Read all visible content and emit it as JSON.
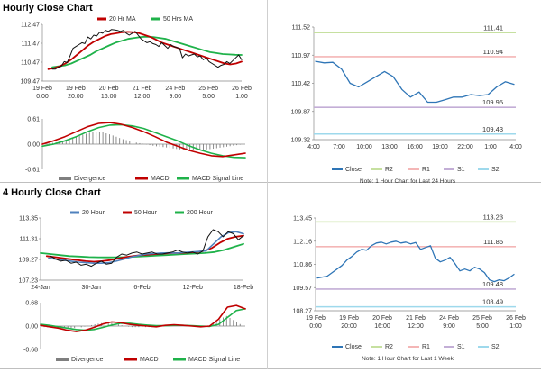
{
  "colors": {
    "close_dark": "#111111",
    "ma20": "#c00000",
    "ma50": "#1fb24a",
    "h200": "#1fb24a",
    "macd": "#c00000",
    "signal": "#1fb24a",
    "divergence": "#7f7f7f",
    "close_blue": "#2e75b6",
    "r2": "#c6e0a0",
    "r1": "#f4b6b6",
    "s1": "#c3aed6",
    "s2": "#9ed9ec",
    "h20": "#4f81bd",
    "h50": "#c00000"
  },
  "sections": {
    "hourly_title": "Hourly Close Chart",
    "four_hourly_title": "4 Hourly Close Chart"
  },
  "chart_data": [
    {
      "id": "hourly_price",
      "type": "line",
      "legend": [
        "20 Hr MA",
        "50 Hrs MA"
      ],
      "y_ticks": [
        "112.47",
        "111.47",
        "110.47",
        "109.47"
      ],
      "ylim": [
        109.47,
        112.47
      ],
      "x_ticks": [
        [
          "19 Feb",
          "0:00"
        ],
        [
          "19 Feb",
          "20:00"
        ],
        [
          "20 Feb",
          "16:00"
        ],
        [
          "21 Feb",
          "12:00"
        ],
        [
          "24 Feb",
          "9:00"
        ],
        [
          "25 Feb",
          "5:00"
        ],
        [
          "26 Feb",
          "1:00"
        ]
      ],
      "series": [
        {
          "name": "Close",
          "values": [
            110.1,
            110.1,
            110.2,
            110.25,
            110.5,
            110.45,
            110.8,
            111.2,
            111.3,
            111.4,
            111.5,
            111.45,
            111.8,
            111.7,
            111.9,
            111.85,
            112.05,
            112.0,
            112.15,
            112.1,
            112.2,
            112.18,
            112.15,
            112.1,
            112.15,
            112.0,
            111.9,
            112.0,
            112.1,
            111.9,
            111.7,
            111.6,
            111.5,
            111.55,
            111.45,
            111.4,
            111.3,
            111.5,
            111.35,
            111.2,
            111.4,
            111.3,
            111.25,
            111.2,
            110.7,
            110.9,
            110.8,
            110.85,
            110.9,
            110.75,
            110.8,
            110.6,
            110.7,
            110.5,
            110.4,
            110.3,
            110.2,
            110.3,
            110.35,
            110.5,
            110.4,
            110.55,
            110.7,
            110.85,
            110.6
          ]
        },
        {
          "name": "20 Hr MA",
          "values": [
            110.1,
            110.15,
            110.25,
            110.4,
            110.6,
            110.85,
            111.1,
            111.35,
            111.55,
            111.7,
            111.85,
            111.95,
            112.0,
            112.05,
            112.07,
            112.05,
            112.0,
            111.9,
            111.8,
            111.65,
            111.5,
            111.4,
            111.3,
            111.2,
            111.1,
            111.0,
            110.9,
            110.8,
            110.7,
            110.6,
            110.5,
            110.4,
            110.35,
            110.4,
            110.5
          ]
        },
        {
          "name": "50 Hrs MA",
          "values": [
            110.2,
            110.25,
            110.3,
            110.4,
            110.55,
            110.7,
            110.85,
            111.05,
            111.2,
            111.35,
            111.5,
            111.6,
            111.7,
            111.75,
            111.8,
            111.82,
            111.8,
            111.75,
            111.7,
            111.6,
            111.5,
            111.4,
            111.3,
            111.2,
            111.1,
            111.0,
            110.95,
            110.9,
            110.88,
            110.86,
            110.85
          ]
        }
      ]
    },
    {
      "id": "hourly_macd",
      "type": "line",
      "legend": [
        "Divergence",
        "MACD",
        "MACD Signal Line"
      ],
      "y_ticks": [
        "0.61",
        "0.00",
        "-0.61"
      ],
      "ylim": [
        -0.61,
        0.61
      ],
      "series": [
        {
          "name": "MACD",
          "values": [
            0.0,
            0.08,
            0.18,
            0.3,
            0.42,
            0.5,
            0.52,
            0.48,
            0.4,
            0.3,
            0.18,
            0.05,
            -0.05,
            -0.15,
            -0.22,
            -0.28,
            -0.3,
            -0.26,
            -0.22
          ]
        },
        {
          "name": "MACD Signal Line",
          "values": [
            -0.05,
            0.0,
            0.08,
            0.18,
            0.3,
            0.4,
            0.46,
            0.47,
            0.44,
            0.38,
            0.28,
            0.18,
            0.08,
            -0.04,
            -0.14,
            -0.22,
            -0.28,
            -0.32,
            -0.33
          ]
        },
        {
          "name": "Divergence",
          "values": [
            0.0,
            0.05,
            0.12,
            0.2,
            0.28,
            0.3,
            0.22,
            0.12,
            0.05,
            0.0,
            -0.05,
            -0.08,
            -0.12,
            -0.14,
            -0.14,
            -0.12,
            -0.08,
            -0.04,
            0.0
          ]
        }
      ]
    },
    {
      "id": "hourly_levels",
      "type": "line",
      "y_ticks": [
        "111.52",
        "110.97",
        "110.42",
        "109.87",
        "109.32"
      ],
      "ylim": [
        109.32,
        111.52
      ],
      "x_ticks": [
        "4:00",
        "7:00",
        "10:00",
        "13:00",
        "16:00",
        "19:00",
        "22:00",
        "1:00",
        "4:00"
      ],
      "levels": [
        {
          "name": "R2",
          "value": 111.41,
          "label": "111.41"
        },
        {
          "name": "R1",
          "value": 110.94,
          "label": "110.94"
        },
        {
          "name": "S1",
          "value": 109.95,
          "label": "109.95"
        },
        {
          "name": "S2",
          "value": 109.43,
          "label": "109.43"
        }
      ],
      "series": [
        {
          "name": "Close",
          "values": [
            110.85,
            110.82,
            110.83,
            110.7,
            110.42,
            110.35,
            110.45,
            110.55,
            110.65,
            110.55,
            110.3,
            110.15,
            110.25,
            110.05,
            110.05,
            110.1,
            110.15,
            110.15,
            110.2,
            110.18,
            110.2,
            110.35,
            110.45,
            110.4
          ]
        }
      ],
      "legend": [
        "Close",
        "R2",
        "R1",
        "S1",
        "S2"
      ],
      "note": "Note: 1 Hour Chart for Last 24 Hours"
    },
    {
      "id": "four_hourly_price",
      "type": "line",
      "legend": [
        "20 Hour",
        "50 Hour",
        "200 Hour"
      ],
      "y_ticks": [
        "113.35",
        "111.31",
        "109.27",
        "107.23"
      ],
      "ylim": [
        107.23,
        113.35
      ],
      "x_ticks": [
        "24-Jan",
        "30-Jan",
        "6-Feb",
        "12-Feb",
        "18-Feb"
      ],
      "series": [
        {
          "name": "Close",
          "values": [
            109.6,
            109.3,
            109.1,
            109.2,
            108.9,
            109.0,
            108.7,
            108.8,
            108.6,
            108.9,
            109.1,
            108.8,
            108.9,
            109.5,
            109.8,
            109.7,
            109.9,
            110.0,
            109.8,
            109.9,
            110.0,
            109.8,
            109.8,
            109.9,
            110.0,
            110.2,
            110.0,
            109.9,
            110.0,
            109.8,
            110.1,
            111.5,
            112.2,
            112.0,
            111.5,
            112.0,
            111.8,
            111.2,
            111.6
          ]
        },
        {
          "name": "20 Hour",
          "values": [
            109.4,
            109.3,
            109.2,
            109.1,
            109.0,
            108.95,
            108.9,
            108.9,
            108.95,
            109.1,
            109.3,
            109.5,
            109.65,
            109.8,
            109.85,
            109.9,
            109.92,
            109.9,
            109.95,
            110.0,
            110.05,
            110.1,
            110.8,
            111.5,
            111.9,
            112.0,
            111.8
          ]
        },
        {
          "name": "50 Hour",
          "values": [
            109.6,
            109.5,
            109.4,
            109.3,
            109.2,
            109.1,
            109.05,
            109.1,
            109.2,
            109.35,
            109.5,
            109.6,
            109.7,
            109.75,
            109.8,
            109.85,
            109.9,
            109.9,
            109.95,
            110.0,
            110.1,
            110.4,
            110.9,
            111.3,
            111.5,
            111.6
          ]
        },
        {
          "name": "200 Hour",
          "values": [
            109.9,
            109.8,
            109.7,
            109.6,
            109.55,
            109.5,
            109.48,
            109.47,
            109.48,
            109.5,
            109.55,
            109.6,
            109.65,
            109.7,
            109.75,
            109.8,
            109.85,
            109.9,
            110.0,
            110.2,
            110.5,
            110.8
          ]
        }
      ]
    },
    {
      "id": "four_hourly_macd",
      "type": "line",
      "legend": [
        "Divergence",
        "MACD",
        "MACD Signal Line"
      ],
      "y_ticks": [
        "0.68",
        "0.00",
        "-0.68"
      ],
      "ylim": [
        -0.68,
        0.68
      ],
      "series": [
        {
          "name": "MACD",
          "values": [
            0.02,
            -0.02,
            -0.06,
            -0.12,
            -0.16,
            -0.12,
            -0.04,
            0.06,
            0.12,
            0.1,
            0.05,
            0.02,
            0.0,
            -0.02,
            0.02,
            0.04,
            0.02,
            0.0,
            -0.02,
            0.0,
            0.2,
            0.55,
            0.6,
            0.5
          ]
        },
        {
          "name": "MACD Signal Line",
          "values": [
            0.05,
            0.02,
            -0.02,
            -0.06,
            -0.1,
            -0.12,
            -0.1,
            -0.04,
            0.03,
            0.08,
            0.08,
            0.05,
            0.03,
            0.01,
            0.01,
            0.02,
            0.02,
            0.01,
            0.0,
            -0.01,
            0.05,
            0.25,
            0.45,
            0.5
          ]
        },
        {
          "name": "Divergence",
          "values": [
            -0.03,
            -0.04,
            -0.05,
            -0.06,
            -0.05,
            0.0,
            0.06,
            0.1,
            0.09,
            0.02,
            -0.03,
            -0.03,
            -0.03,
            -0.03,
            0.01,
            0.02,
            0.0,
            -0.01,
            -0.02,
            0.01,
            0.15,
            0.3,
            0.15,
            0.0
          ]
        }
      ]
    },
    {
      "id": "four_hourly_levels",
      "type": "line",
      "y_ticks": [
        "113.45",
        "112.16",
        "110.86",
        "109.57",
        "108.27"
      ],
      "ylim": [
        108.27,
        113.45
      ],
      "x_ticks": [
        [
          "19 Feb",
          "0:00"
        ],
        [
          "19 Feb",
          "20:00"
        ],
        [
          "20 Feb",
          "16:00"
        ],
        [
          "21 Feb",
          "12:00"
        ],
        [
          "24 Feb",
          "9:00"
        ],
        [
          "25 Feb",
          "5:00"
        ],
        [
          "26 Feb",
          "1:00"
        ]
      ],
      "levels": [
        {
          "name": "R2",
          "value": 113.23,
          "label": "113.23"
        },
        {
          "name": "R1",
          "value": 111.85,
          "label": "111.85"
        },
        {
          "name": "S1",
          "value": 109.48,
          "label": "109.48"
        },
        {
          "name": "S2",
          "value": 108.49,
          "label": "108.49"
        }
      ],
      "series": [
        {
          "name": "Close",
          "values": [
            110.1,
            110.15,
            110.2,
            110.4,
            110.6,
            110.8,
            111.1,
            111.3,
            111.55,
            111.7,
            111.65,
            111.9,
            112.05,
            112.1,
            112.0,
            112.1,
            112.15,
            112.05,
            112.1,
            112.0,
            112.08,
            111.7,
            111.8,
            111.9,
            111.2,
            111.0,
            111.1,
            111.25,
            110.9,
            110.5,
            110.6,
            110.5,
            110.7,
            110.6,
            110.4,
            110.0,
            109.9,
            110.0,
            109.95,
            110.1,
            110.3
          ]
        }
      ],
      "legend": [
        "Close",
        "R2",
        "R1",
        "S1",
        "S2"
      ],
      "note": "Note: 1 Hour Chart for Last 1 Week"
    }
  ]
}
